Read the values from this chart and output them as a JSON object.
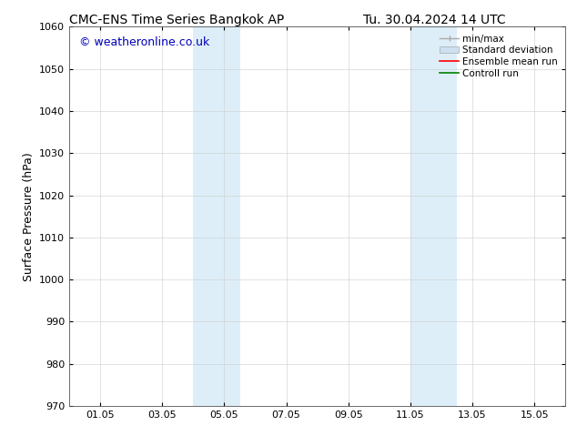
{
  "title_left": "CMC-ENS Time Series Bangkok AP",
  "title_right": "Tu. 30.04.2024 14 UTC",
  "ylabel": "Surface Pressure (hPa)",
  "ylim": [
    970,
    1060
  ],
  "yticks": [
    970,
    980,
    990,
    1000,
    1010,
    1020,
    1030,
    1040,
    1050,
    1060
  ],
  "xtick_labels": [
    "01.05",
    "03.05",
    "05.05",
    "07.05",
    "09.05",
    "11.05",
    "13.05",
    "15.05"
  ],
  "xtick_positions": [
    1,
    3,
    5,
    7,
    9,
    11,
    13,
    15
  ],
  "xlim": [
    0,
    16
  ],
  "shade_regions": [
    {
      "x_start": 4.0,
      "x_end": 5.5,
      "color": "#ddeef8"
    },
    {
      "x_start": 11.0,
      "x_end": 12.5,
      "color": "#ddeef8"
    }
  ],
  "watermark_text": "© weatheronline.co.uk",
  "watermark_color": "#0000bb",
  "watermark_fontsize": 9,
  "bg_color": "#ffffff",
  "tick_label_fontsize": 8,
  "axis_label_fontsize": 9,
  "title_fontsize": 10
}
